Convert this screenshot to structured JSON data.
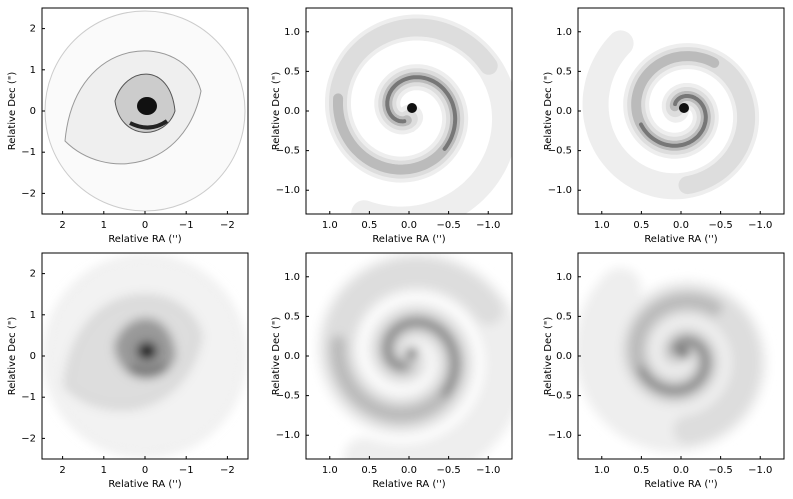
{
  "chart_data": [
    {
      "type": "image",
      "xlabel": "Relative RA ('')",
      "ylabel": "Relative Dec (\")",
      "xlim": [
        2.5,
        -2.5
      ],
      "ylim": [
        -2.5,
        2.5
      ],
      "xticks": [
        2,
        1,
        0,
        {
          "value": -1,
          "label": "−1"
        },
        {
          "value": -2,
          "label": "−2"
        }
      ],
      "yticks": [
        {
          "value": -2,
          "label": "−2"
        },
        {
          "value": -1,
          "label": "−1"
        },
        0,
        1,
        2
      ]
    },
    {
      "type": "image",
      "xlabel": "Relative RA ('')",
      "ylabel": "Relative Dec (\")",
      "xlim": [
        1.3,
        -1.3
      ],
      "ylim": [
        -1.3,
        1.3
      ],
      "xticks": [
        {
          "value": 1,
          "label": "1.0"
        },
        0.5,
        {
          "value": 0,
          "label": "0.0"
        },
        {
          "value": -0.5,
          "label": "−0.5"
        },
        {
          "value": -1,
          "label": "−1.0"
        }
      ],
      "yticks": [
        {
          "value": -1,
          "label": "−1.0"
        },
        {
          "value": -0.5,
          "label": "−0.5"
        },
        {
          "value": 0,
          "label": "0.0"
        },
        0.5,
        {
          "value": 1,
          "label": "1.0"
        }
      ]
    },
    {
      "type": "image",
      "xlabel": "Relative RA ('')",
      "ylabel": "Relative Dec (\")",
      "xlim": [
        1.3,
        -1.3
      ],
      "ylim": [
        -1.3,
        1.3
      ],
      "xticks": [
        {
          "value": 1,
          "label": "1.0"
        },
        0.5,
        {
          "value": 0,
          "label": "0.0"
        },
        {
          "value": -0.5,
          "label": "−0.5"
        },
        {
          "value": -1,
          "label": "−1.0"
        }
      ],
      "yticks": [
        {
          "value": -1,
          "label": "−1.0"
        },
        {
          "value": -0.5,
          "label": "−0.5"
        },
        {
          "value": 0,
          "label": "0.0"
        },
        0.5,
        {
          "value": 1,
          "label": "1.0"
        }
      ]
    },
    {
      "type": "image",
      "xlabel": "Relative RA ('')",
      "ylabel": "Relative Dec (\")",
      "xlim": [
        2.5,
        -2.5
      ],
      "ylim": [
        -2.5,
        2.5
      ],
      "xticks": [
        2,
        1,
        0,
        {
          "value": -1,
          "label": "−1"
        },
        {
          "value": -2,
          "label": "−2"
        }
      ],
      "yticks": [
        {
          "value": -2,
          "label": "−2"
        },
        {
          "value": -1,
          "label": "−1"
        },
        0,
        1,
        2
      ]
    },
    {
      "type": "image",
      "xlabel": "Relative RA ('')",
      "ylabel": "Relative Dec (\")",
      "xlim": [
        1.3,
        -1.3
      ],
      "ylim": [
        -1.3,
        1.3
      ],
      "xticks": [
        {
          "value": 1,
          "label": "1.0"
        },
        0.5,
        {
          "value": 0,
          "label": "0.0"
        },
        {
          "value": -0.5,
          "label": "−0.5"
        },
        {
          "value": -1,
          "label": "−1.0"
        }
      ],
      "yticks": [
        {
          "value": -1,
          "label": "−1.0"
        },
        {
          "value": -0.5,
          "label": "−0.5"
        },
        {
          "value": 0,
          "label": "0.0"
        },
        0.5,
        {
          "value": 1,
          "label": "1.0"
        }
      ]
    },
    {
      "type": "image",
      "xlabel": "Relative RA ('')",
      "ylabel": "Relative Dec (\")",
      "xlim": [
        1.3,
        -1.3
      ],
      "ylim": [
        -1.3,
        1.3
      ],
      "xticks": [
        {
          "value": 1,
          "label": "1.0"
        },
        0.5,
        {
          "value": 0,
          "label": "0.0"
        },
        {
          "value": -0.5,
          "label": "−0.5"
        },
        {
          "value": -1,
          "label": "−1.0"
        }
      ],
      "yticks": [
        {
          "value": -1,
          "label": "−1.0"
        },
        {
          "value": -0.5,
          "label": "−0.5"
        },
        {
          "value": 0,
          "label": "0.0"
        },
        0.5,
        {
          "value": 1,
          "label": "1.0"
        }
      ]
    }
  ]
}
